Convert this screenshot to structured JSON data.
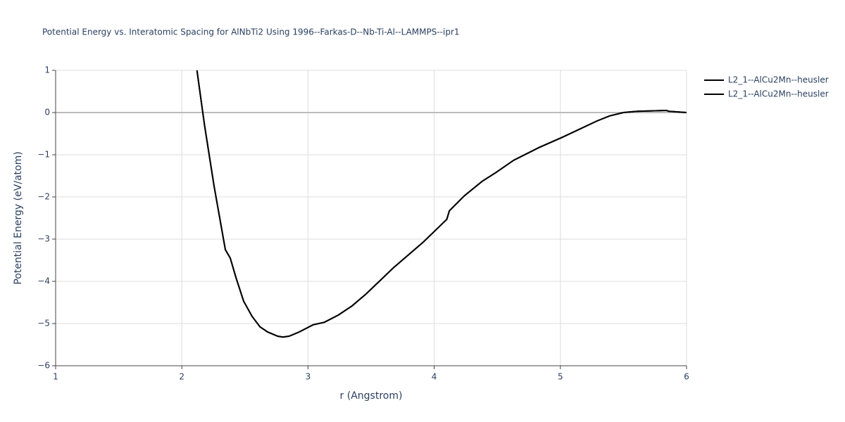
{
  "chart_data": {
    "type": "line",
    "title": "Potential Energy vs. Interatomic Spacing for AlNbTi2 Using 1996--Farkas-D--Nb-Ti-Al--LAMMPS--ipr1",
    "x_label": "r (Angstrom)",
    "y_label": "Potential Energy (eV/atom)",
    "xlim": [
      1,
      6
    ],
    "ylim": [
      -6,
      1
    ],
    "xticks": [
      1,
      2,
      3,
      4,
      5,
      6
    ],
    "yticks": [
      {
        "value": -6,
        "label": "−6"
      },
      {
        "value": -5,
        "label": "−5"
      },
      {
        "value": -4,
        "label": "−4"
      },
      {
        "value": -3,
        "label": "−3"
      },
      {
        "value": -2,
        "label": "−2"
      },
      {
        "value": -1,
        "label": "−1"
      },
      0,
      1
    ],
    "grid": true,
    "legend": "top-right",
    "x": [
      2.12,
      2.18,
      2.256,
      2.345,
      2.384,
      2.43,
      2.49,
      2.557,
      2.62,
      2.68,
      2.76,
      2.8,
      2.85,
      2.93,
      3.04,
      3.13,
      3.24,
      3.35,
      3.46,
      3.68,
      3.91,
      4.1,
      4.12,
      4.24,
      4.38,
      4.49,
      4.63,
      4.83,
      5.02,
      5.29,
      5.39,
      5.5,
      5.61,
      5.84,
      5.86,
      6
    ],
    "series": [
      {
        "name": "L2_1--AlCu2Mn--heusler",
        "color": "#000000",
        "values": [
          1.0,
          -0.3,
          -1.75,
          -3.25,
          -3.45,
          -3.92,
          -4.47,
          -4.83,
          -5.08,
          -5.2,
          -5.3,
          -5.32,
          -5.3,
          -5.2,
          -5.03,
          -4.97,
          -4.8,
          -4.58,
          -4.3,
          -3.67,
          -3.08,
          -2.53,
          -2.33,
          -1.97,
          -1.63,
          -1.42,
          -1.13,
          -0.83,
          -0.58,
          -0.2,
          -0.08,
          0.0,
          0.03,
          0.05,
          0.03,
          0.0
        ]
      },
      {
        "name": "L2_1--AlCu2Mn--heusler",
        "color": "#000000",
        "values": [
          1.0,
          -0.3,
          -1.75,
          -3.25,
          -3.45,
          -3.92,
          -4.47,
          -4.83,
          -5.08,
          -5.2,
          -5.3,
          -5.32,
          -5.3,
          -5.2,
          -5.03,
          -4.97,
          -4.8,
          -4.58,
          -4.3,
          -3.67,
          -3.08,
          -2.53,
          -2.33,
          -1.97,
          -1.63,
          -1.42,
          -1.13,
          -0.83,
          -0.58,
          -0.2,
          -0.08,
          0.0,
          0.03,
          0.05,
          0.03,
          0.0
        ]
      }
    ]
  }
}
